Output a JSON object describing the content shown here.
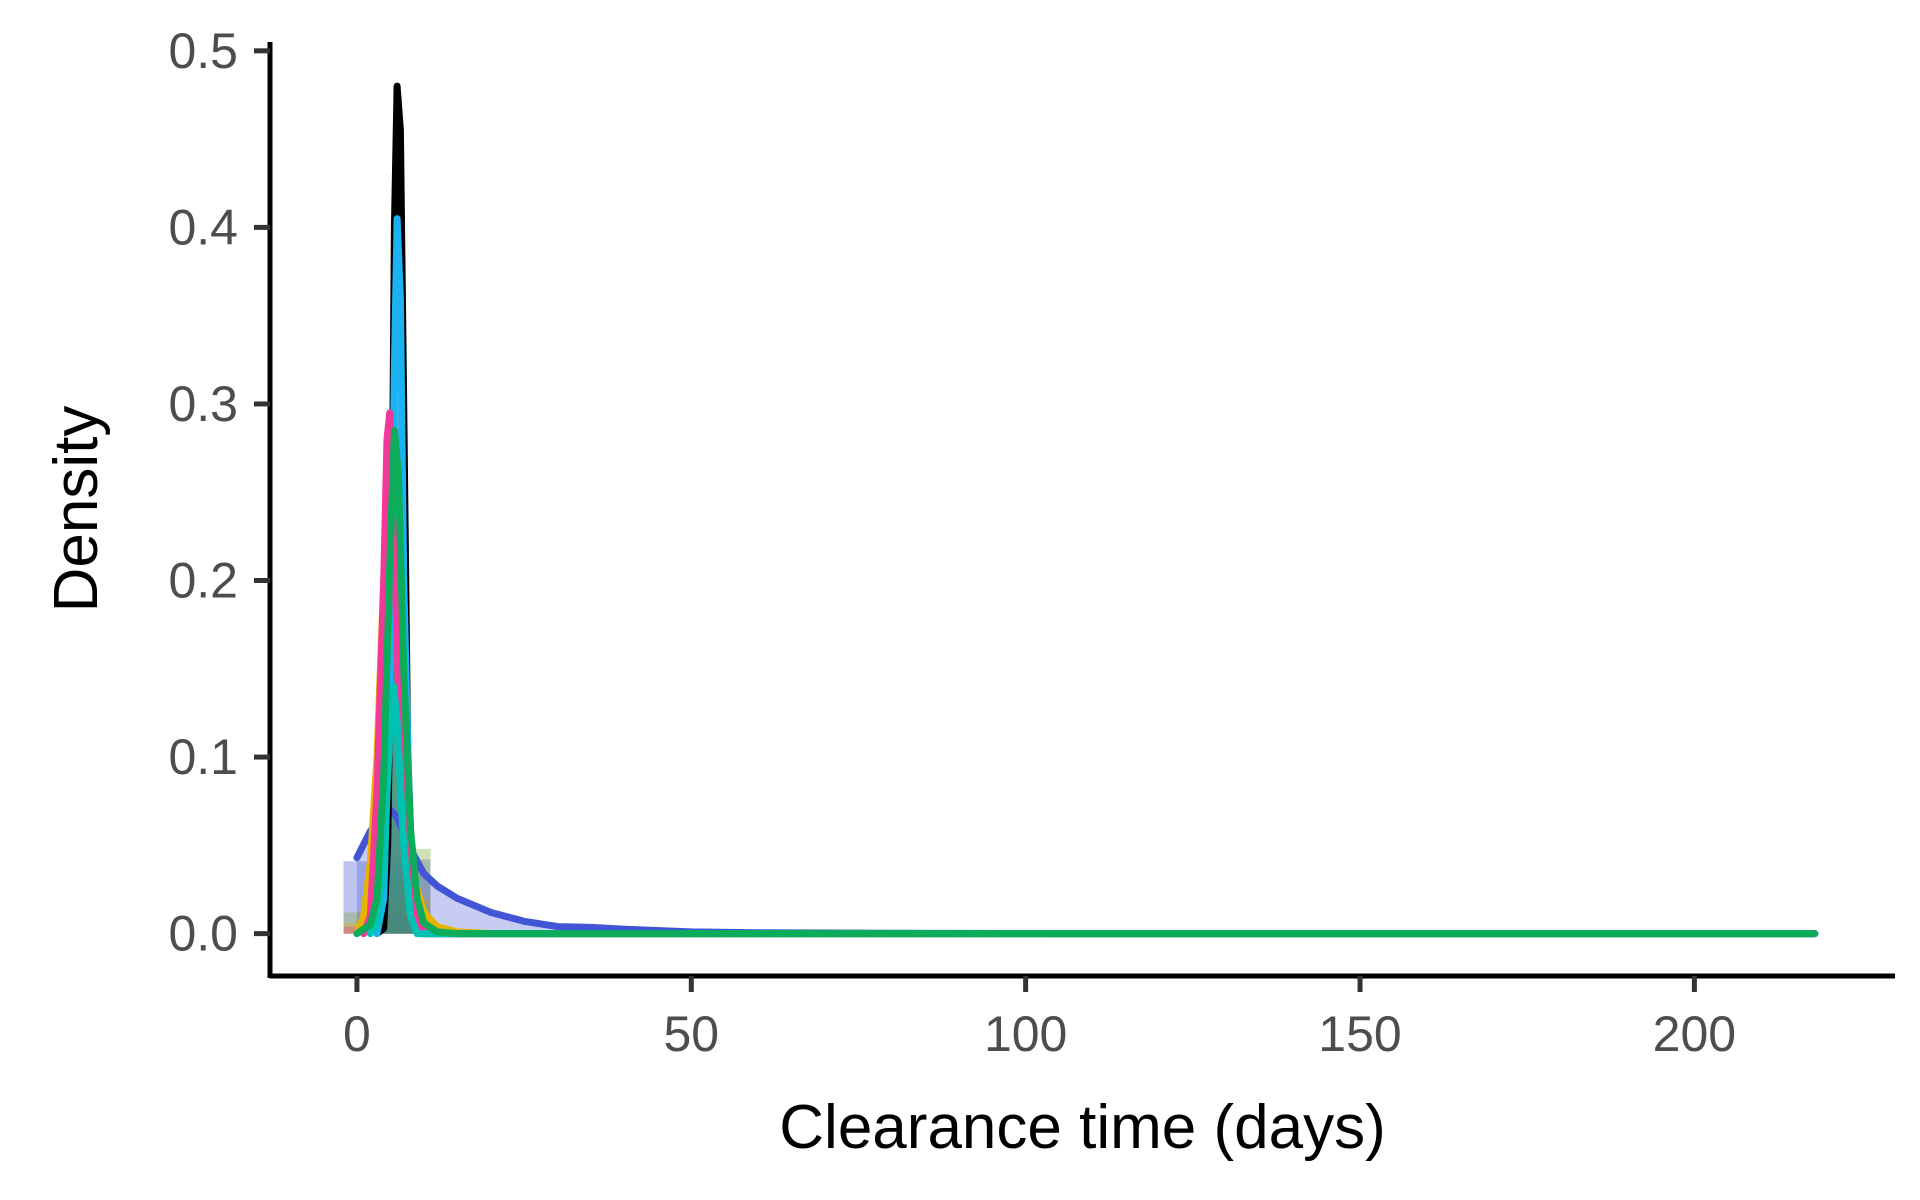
{
  "chart_data": {
    "type": "area",
    "xlabel": "Clearance time (days)",
    "ylabel": "Density",
    "xlim": [
      -13,
      230
    ],
    "ylim": [
      -0.024,
      0.505
    ],
    "x_ticks": [
      0,
      50,
      100,
      150,
      200
    ],
    "x_tick_labels": [
      "0",
      "50",
      "100",
      "150",
      "200"
    ],
    "y_ticks": [
      0.0,
      0.1,
      0.2,
      0.3,
      0.4,
      0.5
    ],
    "y_tick_labels": [
      "0.0",
      "0.1",
      "0.2",
      "0.3",
      "0.4",
      "0.5"
    ],
    "grid": false,
    "legend": "none",
    "histograms": [
      {
        "color": "#4255d4",
        "bins": [
          [
            -2,
            3,
            0.041
          ],
          [
            3,
            7,
            0.04
          ],
          [
            7,
            11,
            0.042
          ]
        ]
      },
      {
        "color": "#7aa832",
        "bins": [
          [
            -2,
            3,
            0.012
          ],
          [
            3,
            7,
            0.03
          ],
          [
            7,
            11,
            0.048
          ]
        ]
      },
      {
        "color": "#e6b400",
        "bins": [
          [
            -2,
            3,
            0.006
          ],
          [
            3,
            7,
            0.02
          ],
          [
            7,
            11,
            0.02
          ]
        ]
      },
      {
        "color": "#f2399a",
        "bins": [
          [
            -2,
            3,
            0.004
          ],
          [
            3,
            7,
            0.012
          ],
          [
            7,
            11,
            0.01
          ]
        ]
      }
    ],
    "series": [
      {
        "color": "#4255d4",
        "fill_opacity": 0.3,
        "points": [
          [
            0,
            0.043
          ],
          [
            2,
            0.058
          ],
          [
            4,
            0.068
          ],
          [
            5,
            0.07
          ],
          [
            6,
            0.066
          ],
          [
            8,
            0.048
          ],
          [
            10,
            0.034
          ],
          [
            12,
            0.027
          ],
          [
            15,
            0.02
          ],
          [
            20,
            0.012
          ],
          [
            25,
            0.007
          ],
          [
            30,
            0.004
          ],
          [
            35,
            0.0035
          ],
          [
            40,
            0.0025
          ],
          [
            50,
            0.001
          ],
          [
            60,
            0.0005
          ],
          [
            80,
            0.0002
          ],
          [
            120,
            0.0
          ],
          [
            218,
            0.0
          ]
        ]
      },
      {
        "color": "#e6b400",
        "fill_opacity": 0.3,
        "points": [
          [
            0,
            0.0
          ],
          [
            1,
            0.01
          ],
          [
            2,
            0.04
          ],
          [
            3,
            0.1
          ],
          [
            4,
            0.2
          ],
          [
            5,
            0.22
          ],
          [
            6,
            0.18
          ],
          [
            7,
            0.1
          ],
          [
            8,
            0.05
          ],
          [
            9,
            0.025
          ],
          [
            10,
            0.012
          ],
          [
            12,
            0.004
          ],
          [
            15,
            0.001
          ],
          [
            20,
            0.0
          ],
          [
            218,
            0.0
          ]
        ]
      },
      {
        "color": "#000000",
        "fill_opacity": 0.35,
        "points": [
          [
            3,
            0.0
          ],
          [
            4,
            0.003
          ],
          [
            4.6,
            0.05
          ],
          [
            5.2,
            0.2
          ],
          [
            5.6,
            0.4
          ],
          [
            6,
            0.48
          ],
          [
            6.5,
            0.455
          ],
          [
            7,
            0.3
          ],
          [
            7.6,
            0.1
          ],
          [
            8.5,
            0.01
          ],
          [
            9.5,
            0.0
          ],
          [
            218,
            0.0
          ]
        ]
      },
      {
        "color": "#1ab2f0",
        "fill_opacity": 0.3,
        "points": [
          [
            3,
            0.0
          ],
          [
            4,
            0.02
          ],
          [
            5,
            0.15
          ],
          [
            5.6,
            0.32
          ],
          [
            6,
            0.405
          ],
          [
            6.5,
            0.36
          ],
          [
            7,
            0.2
          ],
          [
            8,
            0.05
          ],
          [
            9,
            0.008
          ],
          [
            10,
            0.0
          ],
          [
            218,
            0.0
          ]
        ]
      },
      {
        "color": "#f2399a",
        "fill_opacity": 0.3,
        "points": [
          [
            1,
            0.0
          ],
          [
            2,
            0.01
          ],
          [
            3,
            0.08
          ],
          [
            4,
            0.2
          ],
          [
            4.5,
            0.28
          ],
          [
            4.9,
            0.295
          ],
          [
            5.5,
            0.25
          ],
          [
            6,
            0.16
          ],
          [
            7,
            0.07
          ],
          [
            8,
            0.025
          ],
          [
            9,
            0.008
          ],
          [
            10,
            0.002
          ],
          [
            12,
            0.0
          ],
          [
            218,
            0.0
          ]
        ]
      },
      {
        "color": "#00c2b2",
        "fill_opacity": 0.25,
        "points": [
          [
            2,
            0.0
          ],
          [
            3,
            0.005
          ],
          [
            4,
            0.04
          ],
          [
            5,
            0.12
          ],
          [
            5.5,
            0.14
          ],
          [
            6,
            0.12
          ],
          [
            7,
            0.05
          ],
          [
            8,
            0.01
          ],
          [
            9,
            0.0
          ],
          [
            218,
            0.0
          ]
        ]
      },
      {
        "color": "#0bac5a",
        "fill_opacity": 0.3,
        "points": [
          [
            0,
            0.0
          ],
          [
            2,
            0.005
          ],
          [
            3,
            0.02
          ],
          [
            4,
            0.09
          ],
          [
            5,
            0.22
          ],
          [
            5.6,
            0.285
          ],
          [
            6.2,
            0.26
          ],
          [
            7,
            0.15
          ],
          [
            8,
            0.06
          ],
          [
            9,
            0.02
          ],
          [
            10,
            0.006
          ],
          [
            12,
            0.001
          ],
          [
            15,
            0.0
          ],
          [
            218,
            0.0
          ]
        ]
      }
    ]
  }
}
